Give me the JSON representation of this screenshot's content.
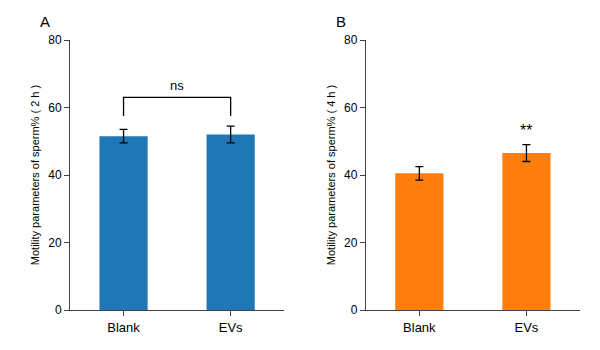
{
  "chart_data": [
    {
      "type": "bar",
      "title": "A",
      "categories": [
        "Blank",
        "EVs"
      ],
      "values": [
        51.5,
        52.0
      ],
      "errors": [
        2.0,
        2.5
      ],
      "ylabel": "Motility parameters of sperm% ( 2 h )",
      "ylim": [
        0,
        80
      ],
      "yticks": [
        0,
        20,
        40,
        60,
        80
      ],
      "grid": false,
      "annotations": [
        {
          "text": "ns",
          "categories": [
            "Blank",
            "EVs"
          ],
          "y": [
            57.5,
            63.0
          ]
        }
      ]
    },
    {
      "type": "bar",
      "title": "B",
      "categories": [
        "Blank",
        "EVs"
      ],
      "values": [
        40.5,
        46.5
      ],
      "errors": [
        2.0,
        2.5
      ],
      "ylabel": "Motility parameters of sperm% ( 4 h )",
      "ylim": [
        0,
        80
      ],
      "yticks": [
        0,
        20,
        40,
        60,
        80
      ],
      "grid": false,
      "annotations": [
        {
          "text": "**",
          "categories": [
            "EVs"
          ]
        }
      ]
    }
  ]
}
